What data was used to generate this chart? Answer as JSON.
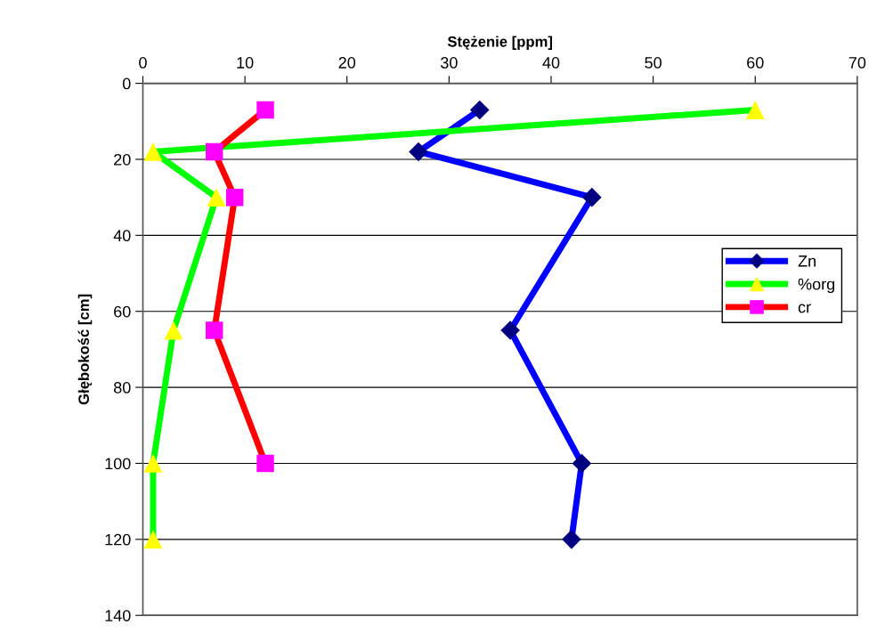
{
  "chart_data": {
    "type": "line",
    "xlabel": "Stężenie [ppm]",
    "ylabel": "Głębokość [cm]",
    "xlim": [
      0,
      70
    ],
    "xticks": [
      0,
      10,
      20,
      30,
      40,
      50,
      60,
      70
    ],
    "ylim": [
      140,
      0
    ],
    "yticks": [
      0,
      20,
      40,
      60,
      80,
      100,
      120,
      140
    ],
    "grid": "y",
    "legend": "right",
    "line_style": "solid",
    "series": [
      {
        "name": "Zn",
        "color": "#0000ff",
        "marker": "diamond",
        "colors": [
          "#000080",
          "#000080",
          "#000080",
          "#000080",
          "#000080",
          "#000080"
        ],
        "x": [
          33,
          27,
          44,
          36,
          43,
          42
        ],
        "values": [
          7,
          18,
          30,
          65,
          100,
          120
        ]
      },
      {
        "name": "%org",
        "color": "#00ff00",
        "marker": "triangle",
        "colors": [
          "#ffff00",
          "#ffff00",
          "#ffff00",
          "#ffff00",
          "#ffff00",
          "#ffff00"
        ],
        "x": [
          60,
          1,
          7.2,
          3,
          1,
          1
        ],
        "values": [
          7,
          18,
          30,
          65,
          100,
          120
        ]
      },
      {
        "name": "cr",
        "color": "#ff0000",
        "marker": "square",
        "colors": [
          "#ff00ff",
          "#ff00ff",
          "#ff00ff",
          "#ff00ff",
          "#ff00ff"
        ],
        "x": [
          12,
          7,
          9,
          7,
          12
        ],
        "values": [
          7,
          18,
          30,
          65,
          100
        ]
      }
    ]
  }
}
